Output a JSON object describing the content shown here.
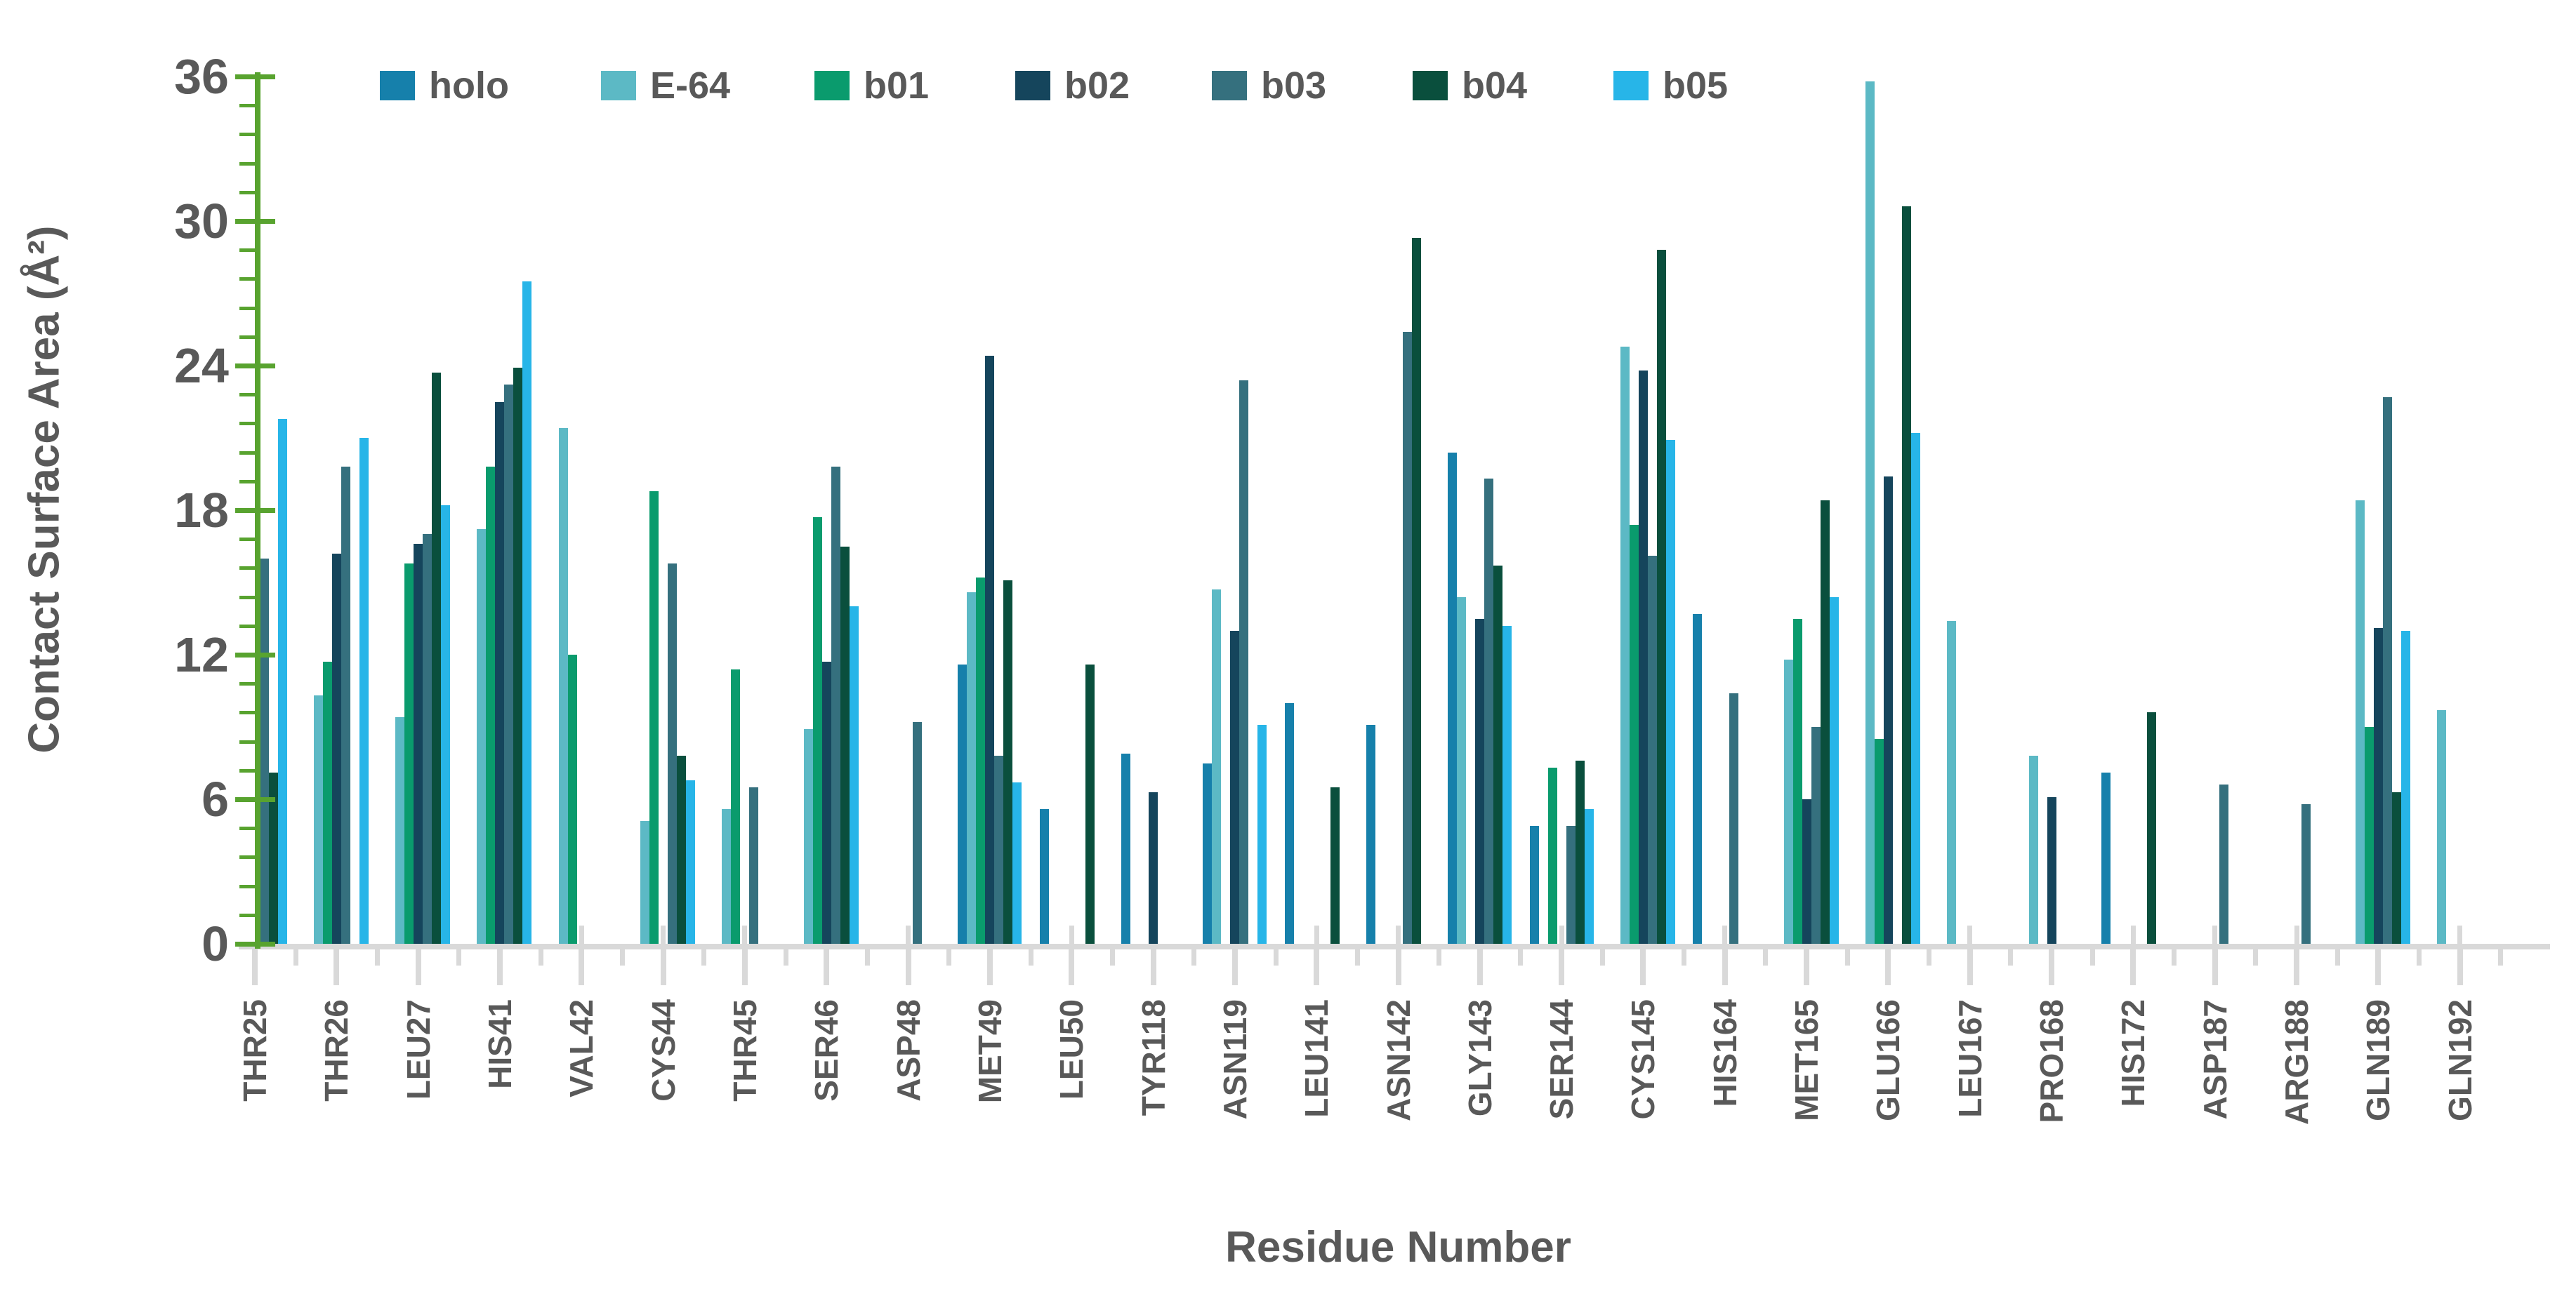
{
  "chart_data": {
    "type": "bar",
    "title": "",
    "xlabel": "Residue Number",
    "ylabel": "Contact Surface Area (Å²)",
    "ylim": [
      0,
      36
    ],
    "yticks": [
      0,
      6,
      12,
      18,
      24,
      30,
      36
    ],
    "minor_tick_step": 1.2,
    "grid": false,
    "legend_position": "top",
    "categories": [
      "THR25",
      "THR26",
      "LEU27",
      "HIS41",
      "VAL42",
      "CYS44",
      "THR45",
      "SER46",
      "ASP48",
      "MET49",
      "LEU50",
      "TYR118",
      "ASN119",
      "LEU141",
      "ASN142",
      "GLY143",
      "SER144",
      "CYS145",
      "HIS164",
      "MET165",
      "GLU166",
      "LEU167",
      "PRO168",
      "HIS172",
      "ASP187",
      "ARG188",
      "GLN189",
      "GLN192"
    ],
    "series": [
      {
        "name": "holo",
        "color": "#1680ab",
        "values": [
          0,
          0,
          0,
          0,
          0,
          0,
          0,
          0,
          0,
          11.6,
          5.6,
          7.9,
          7.5,
          10.0,
          9.1,
          20.4,
          4.9,
          0,
          13.7,
          0,
          0,
          0,
          0,
          7.1,
          0,
          0,
          0,
          0
        ]
      },
      {
        "name": "E-64",
        "color": "#5cb9c5",
        "values": [
          0,
          10.3,
          9.4,
          17.2,
          21.4,
          5.1,
          5.6,
          8.9,
          0,
          14.6,
          0,
          0,
          14.7,
          0,
          0,
          14.4,
          0,
          24.8,
          0,
          11.8,
          35.8,
          13.4,
          7.8,
          0,
          0,
          0,
          18.4,
          9.7
        ]
      },
      {
        "name": "b01",
        "color": "#0a9b6d",
        "values": [
          0,
          11.7,
          15.8,
          19.8,
          12.0,
          18.8,
          11.4,
          17.7,
          0,
          15.2,
          0,
          0,
          0,
          0,
          0,
          0,
          7.3,
          17.4,
          0,
          13.5,
          8.5,
          0,
          0,
          0,
          0,
          0,
          9.0,
          0
        ]
      },
      {
        "name": "b02",
        "color": "#15455c",
        "values": [
          13.6,
          16.2,
          16.6,
          22.5,
          0,
          0,
          0,
          11.7,
          0,
          24.4,
          0,
          6.3,
          13.0,
          0,
          0,
          13.5,
          0,
          23.8,
          0,
          6.0,
          19.4,
          0,
          6.1,
          0,
          0,
          0,
          13.1,
          0
        ]
      },
      {
        "name": "b03",
        "color": "#35707e",
        "values": [
          16.0,
          19.8,
          17.0,
          23.2,
          0,
          15.8,
          6.5,
          19.8,
          9.2,
          7.8,
          0,
          0,
          23.4,
          0,
          25.4,
          19.3,
          4.9,
          16.1,
          10.4,
          9.0,
          0,
          0,
          0,
          0,
          6.6,
          5.8,
          22.7,
          0
        ]
      },
      {
        "name": "b04",
        "color": "#0a4f3d",
        "values": [
          7.1,
          0,
          23.7,
          23.9,
          0,
          7.8,
          0,
          16.5,
          0,
          15.1,
          11.6,
          0,
          0,
          6.5,
          29.3,
          15.7,
          7.6,
          28.8,
          0,
          18.4,
          30.6,
          0,
          0,
          9.6,
          0,
          0,
          6.3,
          0
        ]
      },
      {
        "name": "b05",
        "color": "#27b5e8",
        "values": [
          21.8,
          21.0,
          18.2,
          27.5,
          0,
          6.8,
          0,
          14.0,
          0,
          6.7,
          0,
          0,
          9.1,
          0,
          0,
          13.2,
          5.6,
          20.9,
          0,
          14.4,
          21.2,
          0,
          0,
          0,
          0,
          0,
          13.0,
          0
        ]
      }
    ]
  },
  "axis": {
    "x_title": "Residue Number",
    "y_title": "Contact Surface Area (Å²)",
    "y_tick_labels": [
      "0",
      "6",
      "12",
      "18",
      "24",
      "30",
      "36"
    ]
  },
  "legend": {
    "labels": [
      "holo",
      "E-64",
      "b01",
      "b02",
      "b03",
      "b04",
      "b05"
    ]
  },
  "colors": {
    "axis_green": "#58a32f",
    "tick_gray": "#d9d9d9",
    "text_gray": "#595959",
    "background": "#ffffff"
  }
}
